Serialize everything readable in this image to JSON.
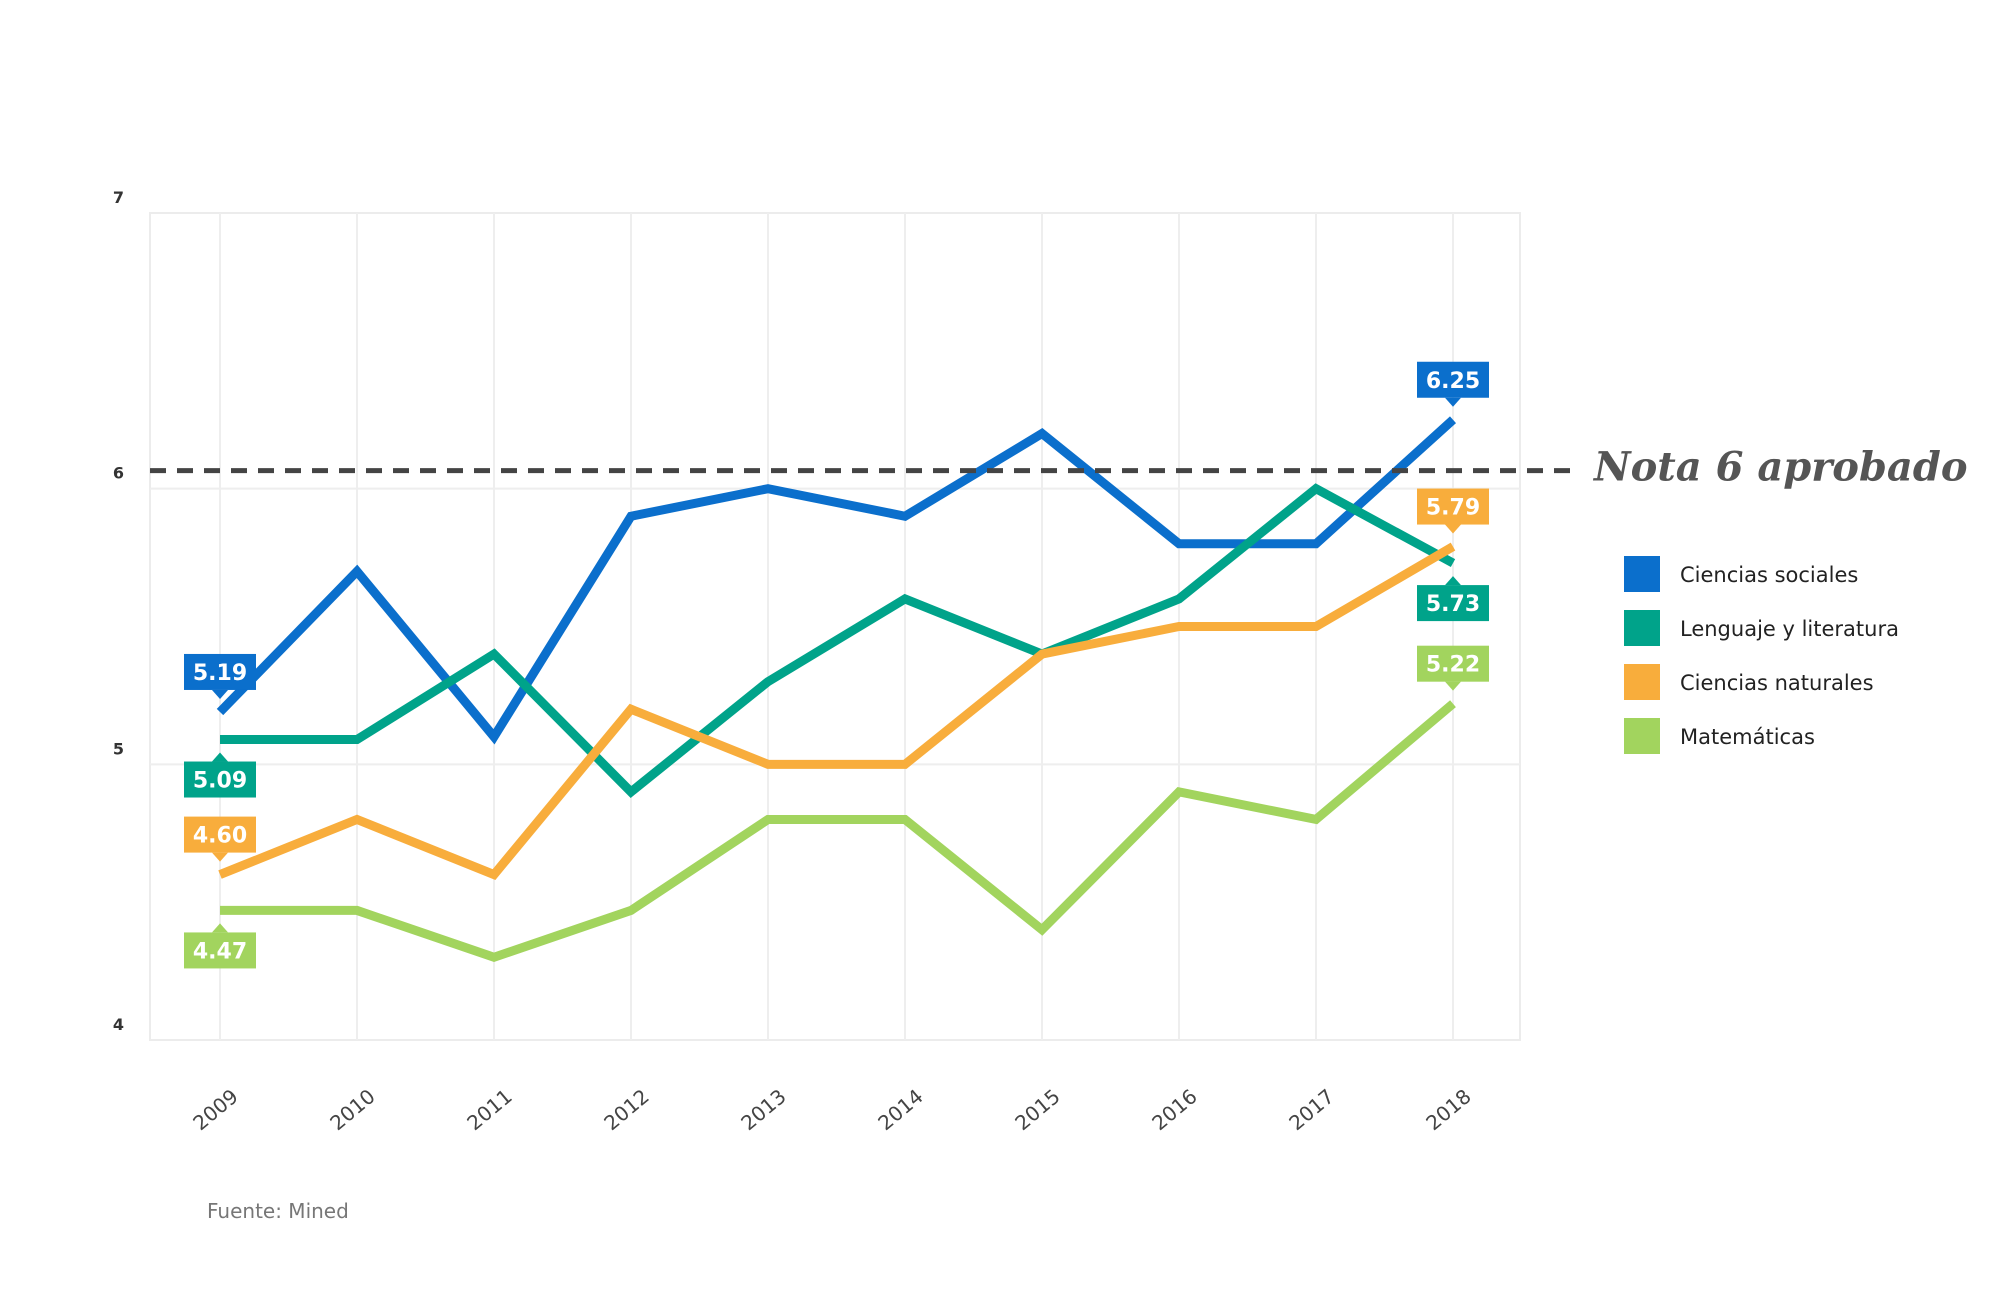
{
  "chart_data": {
    "type": "line",
    "title": "",
    "xlabel": "",
    "ylabel": "",
    "ylim": [
      4,
      7
    ],
    "yticks": [
      "4",
      "5",
      "6",
      "7"
    ],
    "categories": [
      "2009",
      "2010",
      "2011",
      "2012",
      "2013",
      "2014",
      "2015",
      "2016",
      "2017",
      "2018"
    ],
    "grid": true,
    "legend_position": "right",
    "series": [
      {
        "name": "Ciencias sociales",
        "color": "#0b6fcc",
        "values": [
          5.19,
          5.7,
          5.1,
          5.9,
          6.0,
          5.9,
          6.2,
          5.8,
          5.8,
          6.25
        ],
        "labels": [
          {
            "index": 0,
            "text": "5.19",
            "pos": "above"
          },
          {
            "index": 9,
            "text": "6.25",
            "pos": "above"
          }
        ]
      },
      {
        "name": "Lenguaje y literatura",
        "color": "#00a38a",
        "values": [
          5.09,
          5.09,
          5.4,
          4.9,
          5.3,
          5.6,
          5.4,
          5.6,
          6.0,
          5.73
        ],
        "labels": [
          {
            "index": 0,
            "text": "5.09",
            "pos": "below"
          },
          {
            "index": 9,
            "text": "5.73",
            "pos": "below"
          }
        ]
      },
      {
        "name": "Ciencias naturales",
        "color": "#f8ad3c",
        "values": [
          4.6,
          4.8,
          4.6,
          5.2,
          5.0,
          5.0,
          5.4,
          5.5,
          5.5,
          5.79
        ],
        "labels": [
          {
            "index": 0,
            "text": "4.60",
            "pos": "above"
          },
          {
            "index": 9,
            "text": "5.79",
            "pos": "above"
          }
        ]
      },
      {
        "name": "Matemáticas",
        "color": "#a2d45e",
        "values": [
          4.47,
          4.47,
          4.3,
          4.47,
          4.8,
          4.8,
          4.4,
          4.9,
          4.8,
          5.22
        ],
        "labels": [
          {
            "index": 0,
            "text": "4.47",
            "pos": "below"
          },
          {
            "index": 9,
            "text": "5.22",
            "pos": "above"
          }
        ]
      }
    ],
    "reference_line": {
      "value": 6,
      "label": "Nota 6 aprobado",
      "color": "#444444"
    }
  },
  "source": "Fuente: Mined"
}
